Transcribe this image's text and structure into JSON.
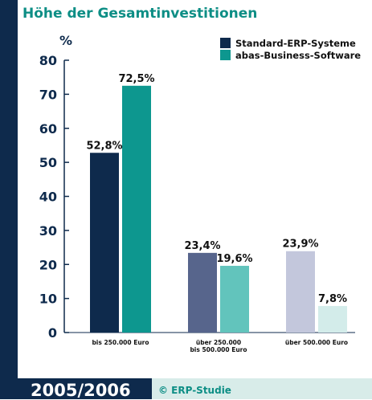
{
  "title": "Höhe der Gesamtinvestitionen",
  "footer": {
    "year": "2005/2006",
    "source": "© ERP-Studie"
  },
  "colors": {
    "standard": [
      "#0e2a4c",
      "#57658c",
      "#c3c7dc"
    ],
    "abas": [
      "#0d978f",
      "#62c4bc",
      "#d3ecea"
    ],
    "accent": "#0d8e85",
    "dark": "#0e2a4c"
  },
  "chart_data": {
    "type": "bar",
    "ylabel": "%",
    "ylim": [
      0,
      80
    ],
    "yticks": [
      0,
      10,
      20,
      30,
      40,
      50,
      60,
      70,
      80
    ],
    "categories": [
      [
        "bis 250.000 Euro"
      ],
      [
        "über 250.000",
        "bis 500.000 Euro"
      ],
      [
        "über 500.000 Euro"
      ]
    ],
    "series": [
      {
        "name": "Standard-ERP-Systeme",
        "values": [
          52.8,
          23.4,
          23.9
        ],
        "labels": [
          "52,8%",
          "23,4%",
          "23,9%"
        ]
      },
      {
        "name": "abas-Business-Software",
        "values": [
          72.5,
          19.6,
          7.8
        ],
        "labels": [
          "72,5%",
          "19,6%",
          "7,8%"
        ]
      }
    ],
    "legend_position": "top-right",
    "grid": false
  }
}
